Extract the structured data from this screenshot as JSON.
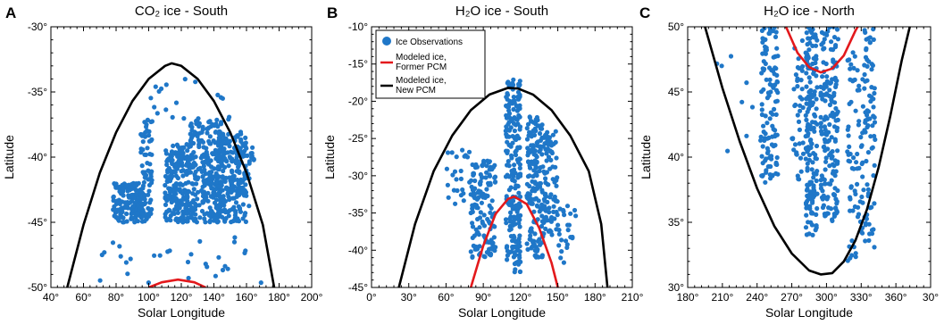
{
  "chart_data": [
    {
      "type": "scatter",
      "panel_label": "A",
      "title": "CO₂ ice - South",
      "xlabel": "Solar Longitude",
      "ylabel": "Latitude",
      "xlim": [
        40,
        200
      ],
      "ylim": [
        -50,
        -30
      ],
      "xticks": [
        "40°",
        "60°",
        "80°",
        "100°",
        "120°",
        "140°",
        "160°",
        "180°",
        "200°"
      ],
      "yticks": [
        "-50°",
        "-45°",
        "-40°",
        "-35°",
        "-30°"
      ],
      "colors": {
        "observations": "#1f77c8",
        "new_pcm": "#000000",
        "former_pcm": "#e3191c"
      },
      "series": [
        {
          "kind": "scatter",
          "clusters": [
            {
              "x": [
                78,
                98
              ],
              "y": [
                -45,
                -42
              ],
              "n": 160
            },
            {
              "x": [
                95,
                102
              ],
              "y": [
                -45,
                -37
              ],
              "n": 70
            },
            {
              "x": [
                110,
                125
              ],
              "y": [
                -45,
                -39
              ],
              "n": 200
            },
            {
              "x": [
                125,
                145
              ],
              "y": [
                -45,
                -37
              ],
              "n": 260
            },
            {
              "x": [
                140,
                160
              ],
              "y": [
                -45,
                -38
              ],
              "n": 200
            },
            {
              "x": [
                145,
                165
              ],
              "y": [
                -44,
                -39
              ],
              "n": 60
            },
            {
              "x": [
                100,
                150
              ],
              "y": [
                -38,
                -34
              ],
              "n": 20
            },
            {
              "x": [
                70,
                170
              ],
              "y": [
                -50,
                -46
              ],
              "n": 30
            }
          ]
        },
        {
          "kind": "curve",
          "xy": [
            [
              50,
              -50
            ],
            [
              60,
              -45.2
            ],
            [
              70,
              -41.2
            ],
            [
              80,
              -38.1
            ],
            [
              90,
              -35.7
            ],
            [
              100,
              -34
            ],
            [
              110,
              -33
            ],
            [
              114,
              -32.8
            ],
            [
              120,
              -33
            ],
            [
              130,
              -34
            ],
            [
              140,
              -35.7
            ],
            [
              150,
              -38.1
            ],
            [
              160,
              -41.2
            ],
            [
              170,
              -45.2
            ],
            [
              177,
              -50
            ]
          ]
        },
        {
          "kind": "curve",
          "xy": [
            [
              100,
              -50
            ],
            [
              108,
              -49.6
            ],
            [
              118,
              -49.4
            ],
            [
              128,
              -49.6
            ],
            [
              135,
              -50
            ]
          ]
        }
      ]
    },
    {
      "type": "scatter",
      "panel_label": "B",
      "title": "H₂O ice - South",
      "xlabel": "Solar Longitude",
      "ylabel": "Latitude",
      "xlim": [
        0,
        210
      ],
      "ylim": [
        -45,
        -10
      ],
      "xticks": [
        "0°",
        "30°",
        "60°",
        "90°",
        "120°",
        "150°",
        "180°",
        "210°"
      ],
      "yticks": [
        "-45°",
        "-40°",
        "-35°",
        "-30°",
        "-25°",
        "-20°",
        "-15°",
        "-10°"
      ],
      "colors": {
        "observations": "#1f77c8",
        "new_pcm": "#000000",
        "former_pcm": "#e3191c"
      },
      "legend": {
        "position": "top-left",
        "items": [
          {
            "label": "Ice Observations",
            "kind": "dot"
          },
          {
            "label": "Modeled ice,",
            "label2": "Former PCM",
            "kind": "red-line"
          },
          {
            "label": "Modeled ice,",
            "label2": "New PCM",
            "kind": "black-line"
          }
        ]
      },
      "series": [
        {
          "kind": "scatter",
          "clusters": [
            {
              "x": [
                80,
                100
              ],
              "y": [
                -41,
                -28
              ],
              "n": 140
            },
            {
              "x": [
                108,
                120
              ],
              "y": [
                -43,
                -17
              ],
              "n": 220
            },
            {
              "x": [
                125,
                138
              ],
              "y": [
                -41,
                -22
              ],
              "n": 160
            },
            {
              "x": [
                138,
                150
              ],
              "y": [
                -38,
                -24
              ],
              "n": 90
            },
            {
              "x": [
                60,
                80
              ],
              "y": [
                -34,
                -26
              ],
              "n": 25
            },
            {
              "x": [
                150,
                165
              ],
              "y": [
                -42,
                -34
              ],
              "n": 25
            }
          ]
        },
        {
          "kind": "curve",
          "xy": [
            [
              22,
              -45
            ],
            [
              35,
              -36.5
            ],
            [
              50,
              -29.4
            ],
            [
              65,
              -24.6
            ],
            [
              80,
              -21.2
            ],
            [
              95,
              -19.1
            ],
            [
              110,
              -18.2
            ],
            [
              118,
              -18.3
            ],
            [
              130,
              -19.1
            ],
            [
              145,
              -21.2
            ],
            [
              160,
              -24.6
            ],
            [
              175,
              -29.4
            ],
            [
              185,
              -36.5
            ],
            [
              190,
              -45
            ]
          ]
        },
        {
          "kind": "curve",
          "xy": [
            [
              80,
              -45
            ],
            [
              90,
              -39.4
            ],
            [
              100,
              -35.1
            ],
            [
              110,
              -33.1
            ],
            [
              115,
              -32.8
            ],
            [
              125,
              -33.8
            ],
            [
              135,
              -37
            ],
            [
              145,
              -41.7
            ],
            [
              150,
              -45
            ]
          ]
        }
      ]
    },
    {
      "type": "scatter",
      "panel_label": "C",
      "title": "H₂O ice - North",
      "xlabel": "Solar Longitude",
      "ylabel": "Latitude",
      "xlim": [
        180,
        390
      ],
      "ylim": [
        30,
        50
      ],
      "xticks": [
        "180°",
        "210°",
        "240°",
        "270°",
        "300°",
        "330°",
        "360°",
        "30°"
      ],
      "yticks": [
        "30°",
        "35°",
        "40°",
        "45°",
        "50°"
      ],
      "colors": {
        "observations": "#1f77c8",
        "new_pcm": "#000000",
        "former_pcm": "#e3191c"
      },
      "series": [
        {
          "kind": "scatter",
          "clusters": [
            {
              "x": [
                243,
                258
              ],
              "y": [
                38,
                50
              ],
              "n": 120
            },
            {
              "x": [
                270,
                280
              ],
              "y": [
                38,
                49
              ],
              "n": 40
            },
            {
              "x": [
                282,
                292
              ],
              "y": [
                34,
                50
              ],
              "n": 160
            },
            {
              "x": [
                295,
                310
              ],
              "y": [
                35,
                50
              ],
              "n": 170
            },
            {
              "x": [
                318,
                330
              ],
              "y": [
                32,
                49
              ],
              "n": 60
            },
            {
              "x": [
                330,
                342
              ],
              "y": [
                33,
                50
              ],
              "n": 90
            },
            {
              "x": [
                200,
                240
              ],
              "y": [
                40,
                50
              ],
              "n": 8
            }
          ]
        },
        {
          "kind": "curve",
          "xy": [
            [
              195,
              50
            ],
            [
              210,
              45.3
            ],
            [
              225,
              41.2
            ],
            [
              240,
              37.6
            ],
            [
              255,
              34.7
            ],
            [
              270,
              32.6
            ],
            [
              285,
              31.3
            ],
            [
              295,
              31
            ],
            [
              305,
              31.1
            ],
            [
              315,
              32
            ],
            [
              325,
              33.6
            ],
            [
              335,
              36
            ],
            [
              345,
              39.2
            ],
            [
              355,
              43.1
            ],
            [
              365,
              47.4
            ],
            [
              372,
              50
            ]
          ]
        },
        {
          "kind": "curve",
          "xy": [
            [
              265,
              50
            ],
            [
              275,
              48
            ],
            [
              285,
              46.9
            ],
            [
              295,
              46.5
            ],
            [
              305,
              46.8
            ],
            [
              315,
              47.8
            ],
            [
              325,
              49.7
            ],
            [
              327,
              50
            ]
          ]
        }
      ]
    }
  ]
}
